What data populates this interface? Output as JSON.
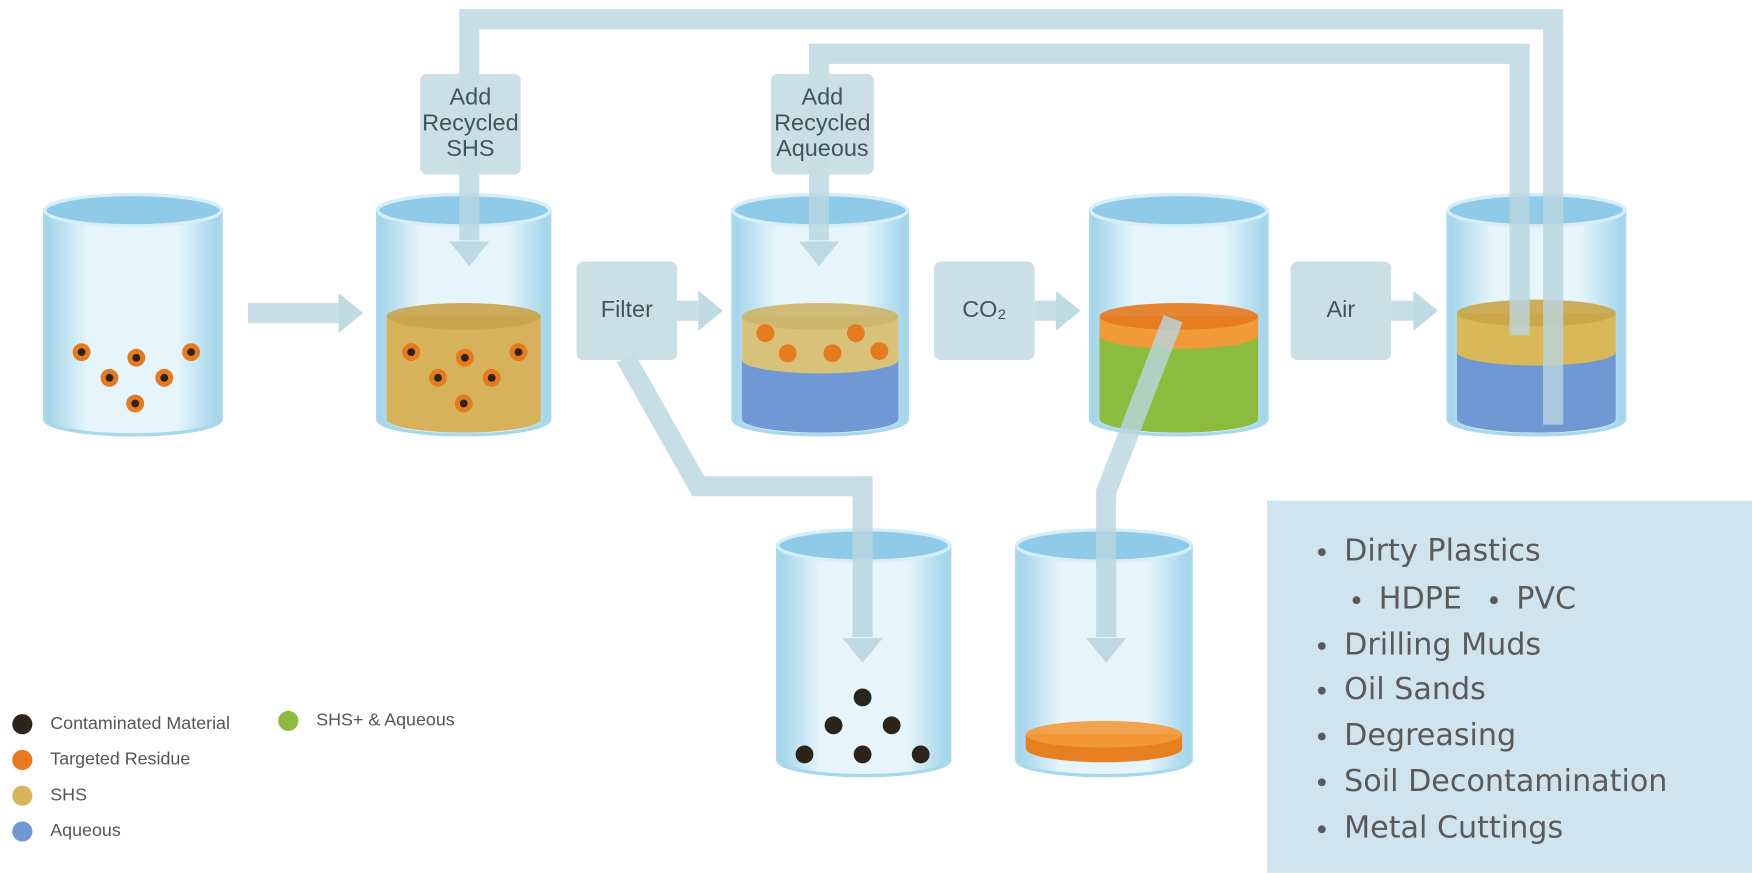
{
  "process_boxes": [
    {
      "lines": [
        "Add",
        "Recycled",
        "SHS"
      ]
    },
    {
      "lines": [
        "Add",
        "Recycled",
        "Aqueous"
      ]
    },
    {
      "lines": [
        "Filter"
      ]
    },
    {
      "lines": [
        "CO₂"
      ]
    },
    {
      "lines": [
        "Air"
      ]
    }
  ],
  "legend": [
    "Contaminated Material",
    "Targeted Residue",
    "SHS",
    "Aqueous",
    "SHS+ & Aqueous"
  ],
  "applications": {
    "items": [
      "Dirty Plastics",
      "Drilling Muds",
      "Oil Sands",
      "Degreasing",
      "Soil Decontamination",
      "Metal Cuttings"
    ],
    "sub_items": [
      "HDPE",
      "PVC"
    ]
  }
}
